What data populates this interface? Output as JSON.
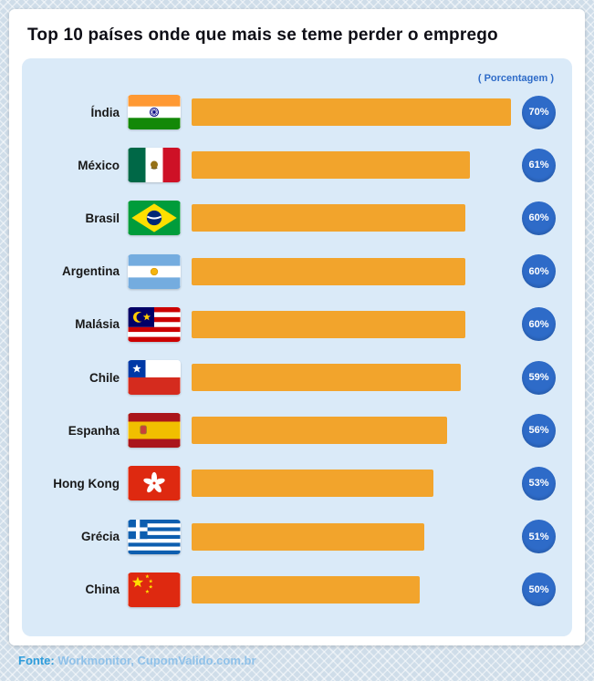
{
  "title": "Top 10 países onde que mais se teme perder o emprego",
  "legend": "( Porcentagem )",
  "footer": {
    "source_label": "Fonte:",
    "source_text": "Workmonitor, CupomValido.com.br"
  },
  "colors": {
    "bar": "#f2a42c",
    "badge": "#2e6bc8",
    "panel": "#daeaf8",
    "accent_text": "#2e6bc8",
    "background": "#cfdde9"
  },
  "chart_data": {
    "type": "bar",
    "orientation": "horizontal",
    "title": "Top 10 países onde que mais se teme perder o emprego",
    "xlabel": "",
    "ylabel": "",
    "unit": "%",
    "xlim": [
      0,
      70
    ],
    "legend_position": "top-right",
    "grid": false,
    "categories": [
      "Índia",
      "México",
      "Brasil",
      "Argentina",
      "Malásia",
      "Chile",
      "Espanha",
      "Hong Kong",
      "Grécia",
      "China"
    ],
    "values": [
      70,
      61,
      60,
      60,
      60,
      59,
      56,
      53,
      51,
      50
    ],
    "flag_icons": [
      "india",
      "mexico",
      "brazil",
      "argentina",
      "malaysia",
      "chile",
      "spain",
      "hongkong",
      "greece",
      "china"
    ]
  }
}
